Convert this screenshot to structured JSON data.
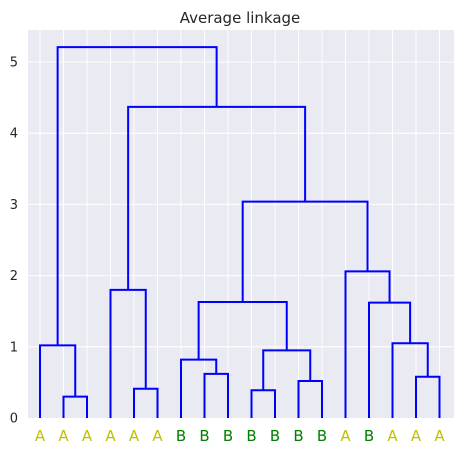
{
  "chart_data": {
    "type": "dendrogram",
    "title": "Average linkage",
    "ylim": [
      0,
      5.45
    ],
    "yticks": [
      0,
      1,
      2,
      3,
      4,
      5
    ],
    "grid": true,
    "leaf_labels": [
      "A",
      "A",
      "A",
      "A",
      "A",
      "A",
      "B",
      "B",
      "B",
      "B",
      "B",
      "B",
      "B",
      "A",
      "B",
      "A",
      "A",
      "A"
    ],
    "label_colors": {
      "A": "#bfbf00",
      "B": "#008000"
    },
    "link_color": "#0000ff",
    "background_color": "#eaeaf2",
    "links": [
      {
        "left": 1,
        "right": 2,
        "height": 0.3
      },
      {
        "left": 0,
        "right": "m",
        "height": 1.02
      },
      {
        "left": 4,
        "right": 5,
        "height": 0.41
      },
      {
        "left": 3,
        "right": "m",
        "height": 1.8
      },
      {
        "left": 7,
        "right": 8,
        "height": 0.62
      },
      {
        "left": 6,
        "right": "m",
        "height": 0.82
      },
      {
        "left": 9,
        "right": 10,
        "height": 0.39
      },
      {
        "left": 11,
        "right": 12,
        "height": 0.52
      },
      {
        "left": "m",
        "right": "m",
        "height": 0.95
      },
      {
        "left": "m",
        "right": "m",
        "height": 1.63
      },
      {
        "left": 16,
        "right": 17,
        "height": 0.58
      },
      {
        "left": 15,
        "right": "m",
        "height": 1.05
      },
      {
        "left": 14,
        "right": "m",
        "height": 1.62
      },
      {
        "left": 13,
        "right": "m",
        "height": 2.06
      },
      {
        "left": "m",
        "right": "m",
        "height": 3.04
      },
      {
        "left": "m",
        "right": "m",
        "height": 4.37
      },
      {
        "left": "m",
        "right": "m",
        "height": 5.21
      }
    ]
  }
}
